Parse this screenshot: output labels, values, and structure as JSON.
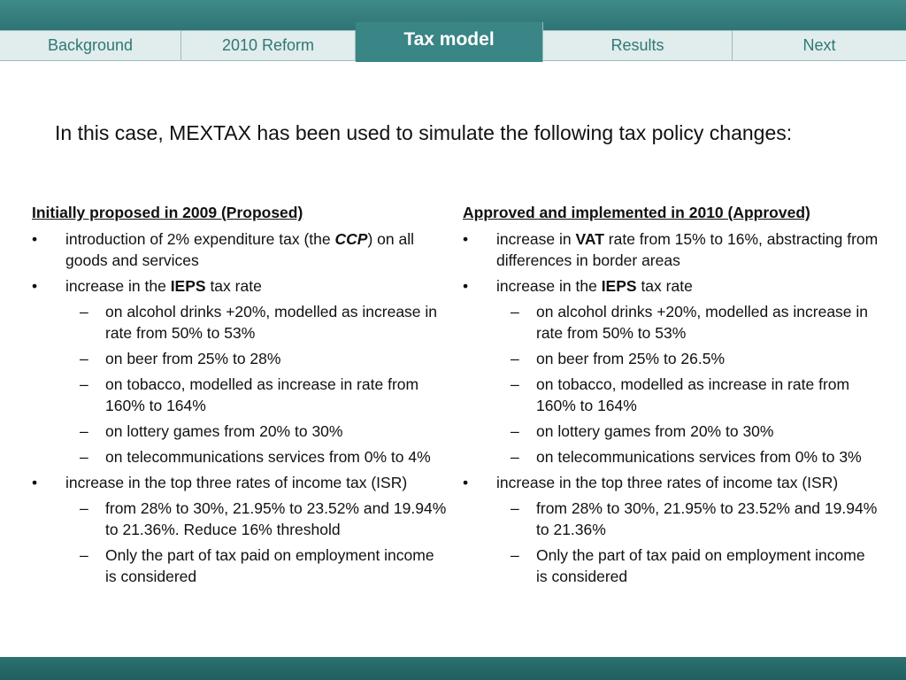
{
  "nav": {
    "tabs": [
      "Background",
      "2010 Reform",
      "Tax model",
      "Results",
      "Next"
    ]
  },
  "intro": "In this case, MEXTAX has been used to simulate the following tax policy changes:",
  "left": {
    "heading": "Initially proposed in 2009 (Proposed)",
    "b1_pre": "introduction of 2% expenditure tax (the ",
    "b1_bold": "CCP",
    "b1_post": ") on all goods and services",
    "b2_pre": "increase in the ",
    "b2_bold": "IEPS",
    "b2_post": " tax rate",
    "b2_subs": [
      "on alcohol drinks +20%, modelled as increase in rate from 50% to 53%",
      "on beer from 25% to 28%",
      "on tobacco, modelled as increase in rate from 160% to 164%",
      "on lottery games from 20% to 30%",
      "on telecommunications services from 0% to 4%"
    ],
    "b3": "increase in the top three rates of income tax (ISR)",
    "b3_subs": [
      "from 28% to 30%, 21.95% to 23.52% and 19.94% to 21.36%. Reduce 16% threshold",
      "Only the part of tax paid on employment income is considered"
    ]
  },
  "right": {
    "heading": "Approved and implemented in 2010 (Approved)",
    "b1_pre": "increase in ",
    "b1_bold": "VAT",
    "b1_post": " rate from 15% to 16%, abstracting from differences in border areas",
    "b2_pre": "increase in the ",
    "b2_bold": "IEPS",
    "b2_post": " tax rate",
    "b2_subs": [
      "on alcohol drinks +20%, modelled as increase in rate from 50% to 53%",
      "on beer from 25% to 26.5%",
      "on tobacco, modelled as increase in rate from 160% to 164%",
      "on lottery games from 20% to 30%",
      "on telecommunications services from 0% to 3%"
    ],
    "b3": "increase in the top three rates of income tax (ISR)",
    "b3_subs": [
      "from 28% to 30%, 21.95% to 23.52% and 19.94% to 21.36%",
      "Only the part of tax paid on employment income is considered"
    ]
  }
}
